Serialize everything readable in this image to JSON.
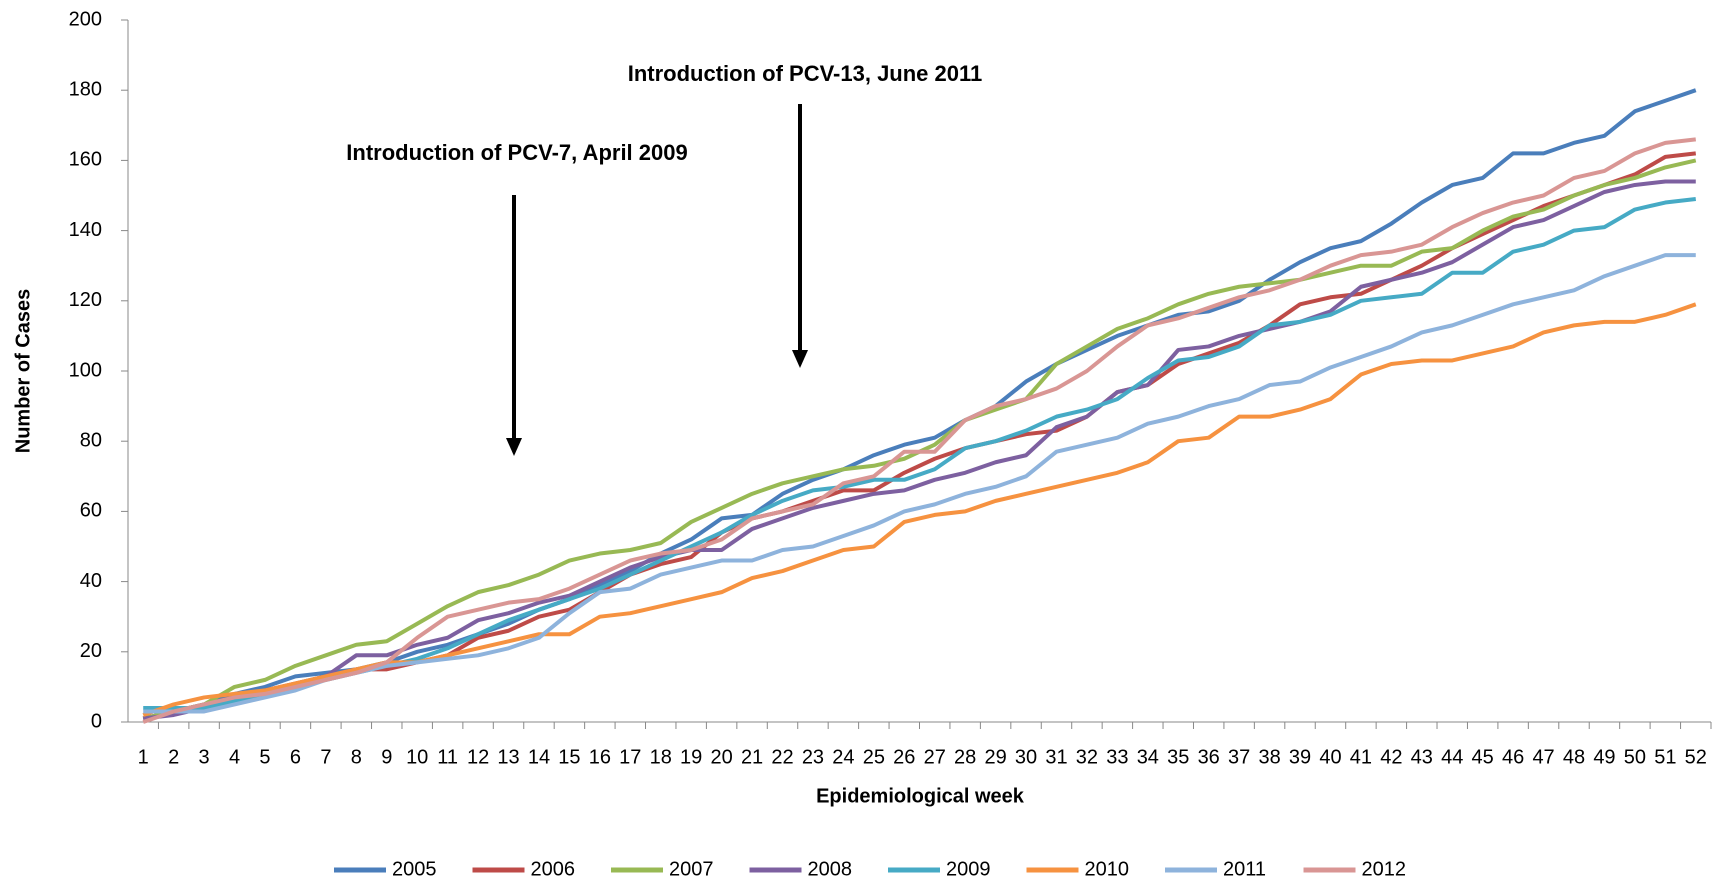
{
  "chart_data": {
    "type": "line",
    "x_label": "Epidemiological week",
    "y_label": "Number of Cases",
    "annotations": [
      "Introduction of PCV-7, April 2009",
      "Introduction of PCV-13, June 2011"
    ],
    "categories": [
      "1",
      "2",
      "3",
      "4",
      "5",
      "6",
      "7",
      "8",
      "9",
      "10",
      "11",
      "12",
      "13",
      "14",
      "15",
      "16",
      "17",
      "18",
      "19",
      "20",
      "21",
      "22",
      "23",
      "24",
      "25",
      "26",
      "27",
      "28",
      "29",
      "30",
      "31",
      "32",
      "33",
      "34",
      "35",
      "36",
      "37",
      "38",
      "39",
      "40",
      "41",
      "42",
      "43",
      "44",
      "45",
      "46",
      "47",
      "48",
      "49",
      "50",
      "51",
      "52"
    ],
    "ylim": [
      0,
      200
    ],
    "yticks": [
      0,
      20,
      40,
      60,
      80,
      100,
      120,
      140,
      160,
      180,
      200
    ],
    "legend": "bottom",
    "series": [
      {
        "name": "2005",
        "color": "#4a7ebb",
        "values": [
          1,
          3,
          5,
          8,
          10,
          13,
          14,
          15,
          17,
          20,
          22,
          25,
          28,
          32,
          35,
          39,
          43,
          48,
          52,
          58,
          59,
          65,
          69,
          72,
          76,
          79,
          81,
          86,
          90,
          97,
          102,
          106,
          110,
          113,
          116,
          117,
          120,
          126,
          131,
          135,
          137,
          142,
          148,
          153,
          155,
          162,
          162,
          165,
          167,
          174,
          177,
          180
        ]
      },
      {
        "name": "2006",
        "color": "#be4b48",
        "values": [
          1,
          3,
          5,
          7,
          9,
          11,
          13,
          15,
          15,
          17,
          19,
          24,
          26,
          30,
          32,
          37,
          42,
          45,
          47,
          54,
          58,
          60,
          63,
          66,
          66,
          71,
          75,
          78,
          80,
          82,
          83,
          87,
          94,
          96,
          102,
          105,
          108,
          113,
          119,
          121,
          122,
          126,
          130,
          135,
          139,
          143,
          147,
          150,
          153,
          156,
          161,
          162
        ]
      },
      {
        "name": "2007",
        "color": "#98b954",
        "values": [
          1,
          3,
          5,
          10,
          12,
          16,
          19,
          22,
          23,
          28,
          33,
          37,
          39,
          42,
          46,
          48,
          49,
          51,
          57,
          61,
          65,
          68,
          70,
          72,
          73,
          75,
          79,
          86,
          89,
          92,
          102,
          107,
          112,
          115,
          119,
          122,
          124,
          125,
          126,
          128,
          130,
          130,
          134,
          135,
          140,
          144,
          146,
          150,
          153,
          155,
          158,
          160
        ]
      },
      {
        "name": "2008",
        "color": "#7d60a0",
        "values": [
          1,
          2,
          4,
          6,
          8,
          10,
          13,
          19,
          19,
          22,
          24,
          29,
          31,
          34,
          36,
          40,
          44,
          47,
          49,
          49,
          55,
          58,
          61,
          63,
          65,
          66,
          69,
          71,
          74,
          76,
          84,
          87,
          94,
          96,
          106,
          107,
          110,
          112,
          114,
          117,
          124,
          126,
          128,
          131,
          136,
          141,
          143,
          147,
          151,
          153,
          154,
          154
        ]
      },
      {
        "name": "2009",
        "color": "#46aac5",
        "values": [
          4,
          4,
          4,
          6,
          8,
          10,
          12,
          14,
          16,
          18,
          21,
          25,
          29,
          32,
          35,
          38,
          42,
          46,
          50,
          54,
          59,
          63,
          66,
          67,
          69,
          69,
          72,
          78,
          80,
          83,
          87,
          89,
          92,
          98,
          103,
          104,
          107,
          113,
          114,
          116,
          120,
          121,
          122,
          128,
          128,
          134,
          136,
          140,
          141,
          146,
          148,
          149
        ]
      },
      {
        "name": "2010",
        "color": "#f69240",
        "values": [
          2,
          5,
          7,
          8,
          9,
          11,
          13,
          15,
          17,
          17,
          19,
          21,
          23,
          25,
          25,
          30,
          31,
          33,
          35,
          37,
          41,
          43,
          46,
          49,
          50,
          57,
          59,
          60,
          63,
          65,
          67,
          69,
          71,
          74,
          80,
          81,
          87,
          87,
          89,
          92,
          99,
          102,
          103,
          103,
          105,
          107,
          111,
          113,
          114,
          114,
          116,
          119
        ]
      },
      {
        "name": "2011",
        "color": "#8eb3dc",
        "values": [
          3,
          3,
          3,
          5,
          7,
          9,
          12,
          14,
          16,
          17,
          18,
          19,
          21,
          24,
          31,
          37,
          38,
          42,
          44,
          46,
          46,
          49,
          50,
          53,
          56,
          60,
          62,
          65,
          67,
          70,
          77,
          79,
          81,
          85,
          87,
          90,
          92,
          96,
          97,
          101,
          104,
          107,
          111,
          113,
          116,
          119,
          121,
          123,
          127,
          130,
          133,
          133
        ]
      },
      {
        "name": "2012",
        "color": "#d99694",
        "values": [
          0,
          3,
          5,
          7,
          8,
          10,
          12,
          14,
          17,
          24,
          30,
          32,
          34,
          35,
          38,
          42,
          46,
          48,
          49,
          52,
          58,
          60,
          62,
          68,
          70,
          77,
          77,
          86,
          90,
          92,
          95,
          100,
          107,
          113,
          115,
          118,
          121,
          123,
          126,
          130,
          133,
          134,
          136,
          141,
          145,
          148,
          150,
          155,
          157,
          162,
          165,
          166
        ]
      }
    ]
  }
}
